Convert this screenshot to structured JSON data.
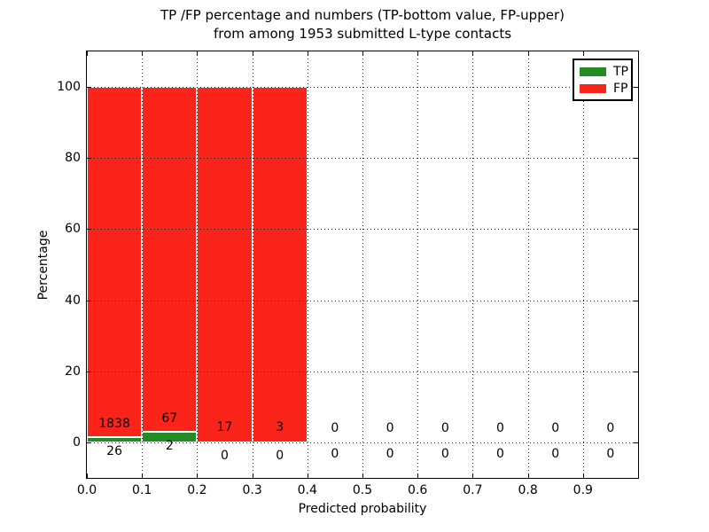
{
  "title": {
    "line1": "TP /FP percentage and numbers (TP-bottom value, FP-upper)",
    "line2": "from among 1953 submitted L-type contacts"
  },
  "chart_data": {
    "type": "bar",
    "stacked": true,
    "title": "TP /FP percentage and numbers (TP-bottom value, FP-upper) from among 1953 submitted L-type contacts",
    "xlabel": "Predicted probability",
    "ylabel": "Percentage",
    "xlim": [
      0.0,
      1.0
    ],
    "ylim": [
      -10,
      110
    ],
    "x_tick_values": [
      0.0,
      0.1,
      0.2,
      0.3,
      0.4,
      0.5,
      0.6,
      0.7,
      0.8,
      0.9
    ],
    "x_tick_labels": [
      "0.0",
      "0.1",
      "0.2",
      "0.3",
      "0.4",
      "0.5",
      "0.6",
      "0.7",
      "0.8",
      "0.9"
    ],
    "y_tick_values": [
      0,
      20,
      40,
      60,
      80,
      100
    ],
    "y_tick_labels": [
      "0",
      "20",
      "40",
      "60",
      "80",
      "100"
    ],
    "grid": "dotted",
    "total_contacts": 1953,
    "legend": {
      "position": "upper right",
      "entries": [
        {
          "label": "TP",
          "color": "#228B22"
        },
        {
          "label": "FP",
          "color": "#fa241b"
        }
      ]
    },
    "series": [
      {
        "name": "TP",
        "color": "#228B22",
        "values_pct": [
          1.39,
          2.9,
          0,
          0,
          0,
          0,
          0,
          0,
          0,
          0
        ]
      },
      {
        "name": "FP",
        "color": "#fa241b",
        "values_pct": [
          98.61,
          97.1,
          100,
          100,
          0,
          0,
          0,
          0,
          0,
          0
        ]
      }
    ],
    "bins": [
      {
        "range": [
          0.0,
          0.1
        ],
        "tp_count": 26,
        "fp_count": 1838,
        "tp_pct": 1.39,
        "fp_pct": 98.61,
        "fp_label": "1838",
        "tp_label": "26",
        "fp_label_y": 5.1,
        "tp_label_y": -2.6
      },
      {
        "range": [
          0.1,
          0.2
        ],
        "tp_count": 2,
        "fp_count": 67,
        "tp_pct": 2.9,
        "fp_pct": 97.1,
        "fp_label": "67",
        "tp_label": "2",
        "fp_label_y": 6.8,
        "tp_label_y": -1.0
      },
      {
        "range": [
          0.2,
          0.3
        ],
        "tp_count": 0,
        "fp_count": 17,
        "tp_pct": 0,
        "fp_pct": 100,
        "fp_label": "17",
        "tp_label": "0",
        "fp_label_y": 4.1,
        "tp_label_y": -3.8
      },
      {
        "range": [
          0.3,
          0.4
        ],
        "tp_count": 0,
        "fp_count": 3,
        "tp_pct": 0,
        "fp_pct": 100,
        "fp_label": "3",
        "tp_label": "0",
        "fp_label_y": 4.2,
        "tp_label_y": -3.8
      },
      {
        "range": [
          0.4,
          0.5
        ],
        "tp_count": 0,
        "fp_count": 0,
        "tp_pct": 0,
        "fp_pct": 0,
        "fp_label": "0",
        "tp_label": "0",
        "fp_label_y": 4.0,
        "tp_label_y": -3.3
      },
      {
        "range": [
          0.5,
          0.6
        ],
        "tp_count": 0,
        "fp_count": 0,
        "tp_pct": 0,
        "fp_pct": 0,
        "fp_label": "0",
        "tp_label": "0",
        "fp_label_y": 4.0,
        "tp_label_y": -3.3
      },
      {
        "range": [
          0.6,
          0.7
        ],
        "tp_count": 0,
        "fp_count": 0,
        "tp_pct": 0,
        "fp_pct": 0,
        "fp_label": "0",
        "tp_label": "0",
        "fp_label_y": 4.0,
        "tp_label_y": -3.3
      },
      {
        "range": [
          0.7,
          0.8
        ],
        "tp_count": 0,
        "fp_count": 0,
        "tp_pct": 0,
        "fp_pct": 0,
        "fp_label": "0",
        "tp_label": "0",
        "fp_label_y": 4.0,
        "tp_label_y": -3.3
      },
      {
        "range": [
          0.8,
          0.9
        ],
        "tp_count": 0,
        "fp_count": 0,
        "tp_pct": 0,
        "fp_pct": 0,
        "fp_label": "0",
        "tp_label": "0",
        "fp_label_y": 4.0,
        "tp_label_y": -3.3
      },
      {
        "range": [
          0.9,
          1.0
        ],
        "tp_count": 0,
        "fp_count": 0,
        "tp_pct": 0,
        "fp_pct": 0,
        "fp_label": "0",
        "tp_label": "0",
        "fp_label_y": 4.0,
        "tp_label_y": -3.3
      }
    ]
  },
  "colors": {
    "tp": "#228B22",
    "fp": "#fa241b",
    "grid": "#000000",
    "text": "#000000",
    "background": "#ffffff"
  }
}
